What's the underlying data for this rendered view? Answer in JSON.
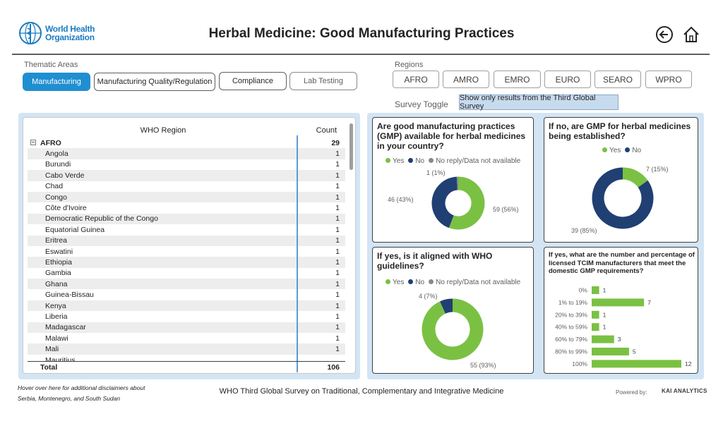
{
  "header": {
    "logo_line1": "World Health",
    "logo_line2": "Organization",
    "title": "Herbal Medicine: Good Manufacturing Practices"
  },
  "thematic": {
    "label": "Thematic Areas",
    "tabs": [
      "Manufacturing",
      "Manufacturing Quality/Regulation",
      "Compliance",
      "Lab Testing"
    ]
  },
  "regions": {
    "label": "Regions",
    "buttons": [
      "AFRO",
      "AMRO",
      "EMRO",
      "EURO",
      "SEARO",
      "WPRO"
    ]
  },
  "survey": {
    "label": "Survey Toggle",
    "button": "Show only results from the Third Global Survey"
  },
  "table": {
    "col_region": "WHO Region",
    "col_count": "Count",
    "group": {
      "name": "AFRO",
      "count": "29"
    },
    "rows": [
      {
        "name": "Angola",
        "count": "1"
      },
      {
        "name": "Burundi",
        "count": "1"
      },
      {
        "name": "Cabo Verde",
        "count": "1"
      },
      {
        "name": "Chad",
        "count": "1"
      },
      {
        "name": "Congo",
        "count": "1"
      },
      {
        "name": "Côte d'Ivoire",
        "count": "1"
      },
      {
        "name": "Democratic Republic of the Congo",
        "count": "1"
      },
      {
        "name": "Equatorial Guinea",
        "count": "1"
      },
      {
        "name": "Eritrea",
        "count": "1"
      },
      {
        "name": "Eswatini",
        "count": "1"
      },
      {
        "name": "Ethiopia",
        "count": "1"
      },
      {
        "name": "Gambia",
        "count": "1"
      },
      {
        "name": "Ghana",
        "count": "1"
      },
      {
        "name": "Guinea-Bissau",
        "count": "1"
      },
      {
        "name": "Kenya",
        "count": "1"
      },
      {
        "name": "Liberia",
        "count": "1"
      },
      {
        "name": "Madagascar",
        "count": "1"
      },
      {
        "name": "Malawi",
        "count": "1"
      },
      {
        "name": "Mali",
        "count": "1"
      },
      {
        "name": "Mauritius",
        "count": ""
      }
    ],
    "total_label": "Total",
    "total_value": "106"
  },
  "colors": {
    "yes": "#7ac143",
    "no": "#203f73",
    "noreply": "#8a8886",
    "bar": "#7ac143"
  },
  "chart_data": [
    {
      "type": "pie",
      "title": "Are good manufacturing practices (GMP) available for herbal medicines in your country?",
      "legend": [
        "Yes",
        "No",
        "No reply/Data not available"
      ],
      "slices": [
        {
          "name": "Yes",
          "value": 59,
          "label": "59 (56%)"
        },
        {
          "name": "No",
          "value": 46,
          "label": "46 (43%)"
        },
        {
          "name": "No reply/Data not available",
          "value": 1,
          "label": "1 (1%)"
        }
      ]
    },
    {
      "type": "pie",
      "title": "If no, are GMP for herbal medicines being established?",
      "legend": [
        "Yes",
        "No"
      ],
      "slices": [
        {
          "name": "Yes",
          "value": 7,
          "label": "7 (15%)"
        },
        {
          "name": "No",
          "value": 39,
          "label": "39 (85%)"
        }
      ]
    },
    {
      "type": "pie",
      "title": "If yes, is it aligned with WHO guidelines?",
      "legend": [
        "Yes",
        "No",
        "No reply/Data not available"
      ],
      "slices": [
        {
          "name": "Yes",
          "value": 55,
          "label": "55 (93%)"
        },
        {
          "name": "No",
          "value": 4,
          "label": "4 (7%)"
        }
      ]
    },
    {
      "type": "bar",
      "title": "If yes, what are the number and percentage of licensed TCIM manufacturers that meet the domestic GMP requirements?",
      "categories": [
        "0%",
        "1% to 19%",
        "20% to 39%",
        "40% to 59%",
        "60% to 79%",
        "80% to 99%",
        "100%"
      ],
      "values": [
        1,
        7,
        1,
        1,
        3,
        5,
        12
      ]
    }
  ],
  "footer": {
    "note_line1": "Hover over here for additional disclaimers about",
    "note_line2": "Serbia, Montenegro, and  South Sudan",
    "center": "WHO Third Global Survey on Traditional, Complementary and Integrative Medicine",
    "powered": "Powered by:",
    "brand": "KAI ANALYTICS"
  }
}
